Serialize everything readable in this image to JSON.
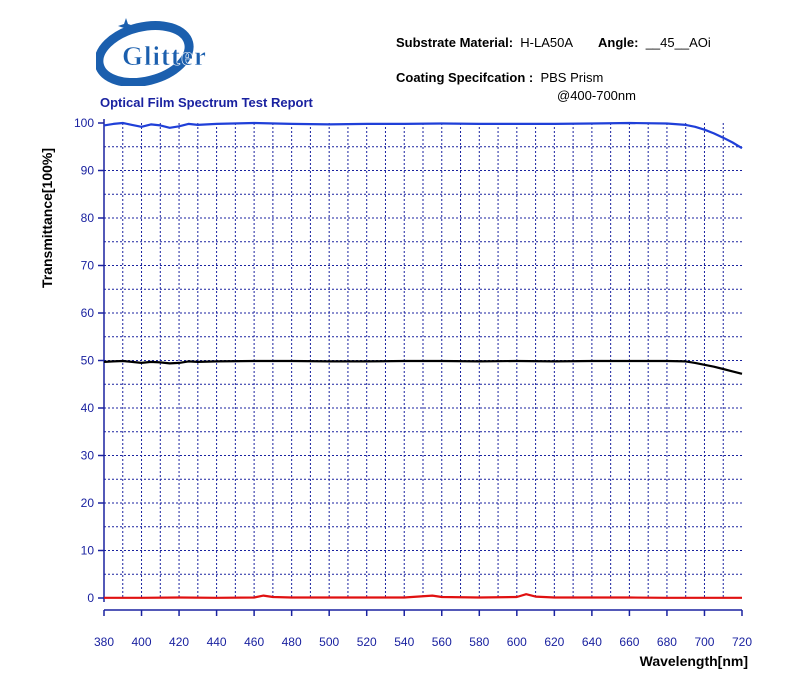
{
  "header": {
    "logo_text": "Glitter",
    "report_title": "Optical Film Spectrum Test Report",
    "substrate_label": "Substrate Material:",
    "substrate_value": "H-LA50A",
    "angle_label": "Angle:",
    "angle_value": "__45__AOi",
    "coating_label": "Coating Specifcation :",
    "coating_value": "PBS Prism",
    "coating_range": "@400-700nm"
  },
  "colors": {
    "axis_text": "#1a22a0",
    "grid": "#1a22a0",
    "series_blue": "#1f3fd8",
    "series_black": "#000000",
    "series_red": "#e01010",
    "logo_blue": "#1b5fae"
  },
  "chart_data": {
    "type": "line",
    "title": "",
    "xlabel": "Wavelength[nm]",
    "ylabel": "Transmittance[100%]",
    "xlim": [
      380,
      720
    ],
    "ylim": [
      0,
      100
    ],
    "xticks": [
      380,
      400,
      420,
      440,
      460,
      480,
      500,
      520,
      540,
      560,
      580,
      600,
      620,
      640,
      660,
      680,
      700,
      720
    ],
    "yticks": [
      0,
      10,
      20,
      30,
      40,
      50,
      60,
      70,
      80,
      90,
      100
    ],
    "grid": true,
    "series": [
      {
        "color": "#1f3fd8",
        "x": [
          380,
          385,
          390,
          395,
          400,
          405,
          410,
          415,
          420,
          425,
          430,
          440,
          460,
          480,
          500,
          520,
          540,
          560,
          580,
          600,
          620,
          640,
          660,
          680,
          690,
          695,
          700,
          705,
          710,
          715,
          720
        ],
        "y": [
          99.5,
          99.8,
          100,
          99.6,
          99.2,
          99.7,
          99.5,
          99.0,
          99.3,
          99.8,
          99.6,
          99.8,
          100,
          99.8,
          99.7,
          99.8,
          99.8,
          99.9,
          99.8,
          99.8,
          99.8,
          99.9,
          100,
          99.9,
          99.6,
          99.2,
          98.6,
          97.8,
          96.9,
          95.9,
          94.7
        ]
      },
      {
        "color": "#000000",
        "x": [
          380,
          385,
          390,
          395,
          400,
          405,
          410,
          415,
          420,
          425,
          430,
          440,
          460,
          480,
          500,
          520,
          540,
          560,
          580,
          600,
          620,
          640,
          660,
          680,
          690,
          695,
          700,
          705,
          710,
          715,
          720
        ],
        "y": [
          49.7,
          49.8,
          49.9,
          49.7,
          49.5,
          49.7,
          49.6,
          49.4,
          49.5,
          49.8,
          49.7,
          49.8,
          49.9,
          49.9,
          49.8,
          49.8,
          49.9,
          49.9,
          49.8,
          49.9,
          49.8,
          49.9,
          49.9,
          49.9,
          49.8,
          49.5,
          49.1,
          48.7,
          48.2,
          47.7,
          47.2
        ]
      },
      {
        "color": "#e01010",
        "x": [
          380,
          400,
          420,
          440,
          460,
          465,
          470,
          480,
          500,
          520,
          540,
          555,
          560,
          580,
          600,
          605,
          610,
          620,
          640,
          660,
          680,
          700,
          720
        ],
        "y": [
          0.05,
          0.05,
          0.1,
          0.05,
          0.1,
          0.5,
          0.2,
          0.1,
          0.1,
          0.1,
          0.1,
          0.5,
          0.2,
          0.1,
          0.2,
          0.8,
          0.3,
          0.1,
          0.1,
          0.1,
          0.05,
          0.05,
          0.05
        ]
      }
    ]
  }
}
